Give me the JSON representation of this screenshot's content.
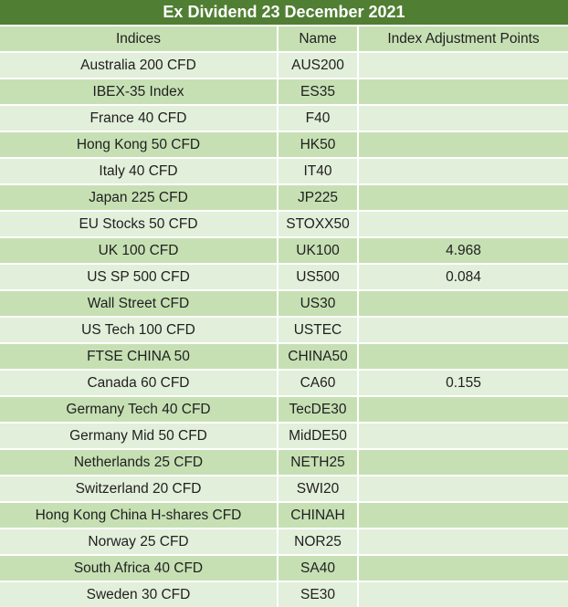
{
  "title": "Ex Dividend 23 December 2021",
  "columns": {
    "indices": "Indices",
    "name": "Name",
    "adjustment": "Index Adjustment Points"
  },
  "rows": [
    {
      "indices": "Australia 200 CFD",
      "name": "AUS200",
      "adjustment": ""
    },
    {
      "indices": "IBEX-35 Index",
      "name": "ES35",
      "adjustment": ""
    },
    {
      "indices": "France 40 CFD",
      "name": "F40",
      "adjustment": ""
    },
    {
      "indices": "Hong Kong 50 CFD",
      "name": "HK50",
      "adjustment": ""
    },
    {
      "indices": "Italy 40 CFD",
      "name": "IT40",
      "adjustment": ""
    },
    {
      "indices": "Japan 225 CFD",
      "name": "JP225",
      "adjustment": ""
    },
    {
      "indices": "EU Stocks 50 CFD",
      "name": "STOXX50",
      "adjustment": ""
    },
    {
      "indices": "UK 100 CFD",
      "name": "UK100",
      "adjustment": "4.968"
    },
    {
      "indices": "US SP 500 CFD",
      "name": "US500",
      "adjustment": "0.084"
    },
    {
      "indices": "Wall Street CFD",
      "name": "US30",
      "adjustment": ""
    },
    {
      "indices": "US Tech 100 CFD",
      "name": "USTEC",
      "adjustment": ""
    },
    {
      "indices": "FTSE CHINA 50",
      "name": "CHINA50",
      "adjustment": ""
    },
    {
      "indices": "Canada 60 CFD",
      "name": "CA60",
      "adjustment": "0.155"
    },
    {
      "indices": "Germany Tech 40 CFD",
      "name": "TecDE30",
      "adjustment": ""
    },
    {
      "indices": "Germany Mid 50 CFD",
      "name": "MidDE50",
      "adjustment": ""
    },
    {
      "indices": "Netherlands 25 CFD",
      "name": "NETH25",
      "adjustment": ""
    },
    {
      "indices": "Switzerland 20 CFD",
      "name": "SWI20",
      "adjustment": ""
    },
    {
      "indices": "Hong Kong China H-shares CFD",
      "name": "CHINAH",
      "adjustment": ""
    },
    {
      "indices": "Norway 25 CFD",
      "name": "NOR25",
      "adjustment": ""
    },
    {
      "indices": "South Africa 40 CFD",
      "name": "SA40",
      "adjustment": ""
    },
    {
      "indices": "Sweden 30 CFD",
      "name": "SE30",
      "adjustment": ""
    }
  ],
  "colors": {
    "title_bg": "#507E32",
    "title_text": "#FFFFFF",
    "row_light": "#E2EFDA",
    "row_dark": "#C6E0B4",
    "grid_line": "#FFFFFF",
    "text": "#1F1F1F"
  }
}
